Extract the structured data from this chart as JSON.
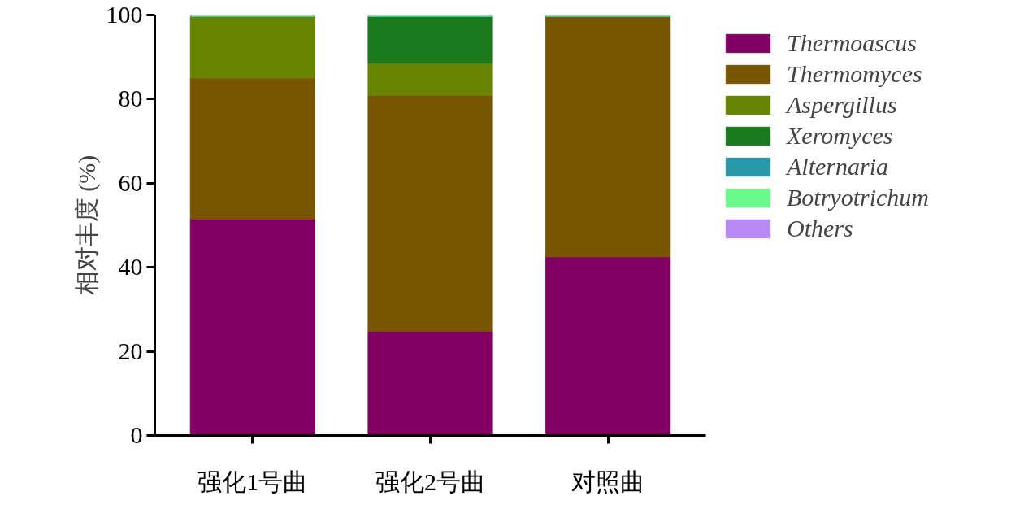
{
  "chart_data": {
    "type": "bar",
    "stacked": true,
    "ylabel": "相对丰度 (%)",
    "categories": [
      "强化1号曲",
      "强化2号曲",
      "对照曲"
    ],
    "series": [
      {
        "name": "Thermoascus",
        "color": "#820064",
        "values": [
          51.5,
          24.8,
          42.5
        ]
      },
      {
        "name": "Thermomyces",
        "color": "#785500",
        "values": [
          33.5,
          56.1,
          57.2
        ]
      },
      {
        "name": "Aspergillus",
        "color": "#668400",
        "values": [
          14.7,
          7.7,
          0
        ]
      },
      {
        "name": "Xeromyces",
        "color": "#1b7a1e",
        "values": [
          0,
          11.1,
          0
        ]
      },
      {
        "name": "Alternaria",
        "color": "#2a98a8",
        "values": [
          0,
          0,
          0
        ]
      },
      {
        "name": "Botryotrichum",
        "color": "#6cf98c",
        "values": [
          0.3,
          0.3,
          0.3
        ]
      },
      {
        "name": "Others",
        "color": "#b88af5",
        "values": [
          0,
          0,
          0
        ]
      }
    ],
    "ylim": [
      0,
      100
    ],
    "yticks": [
      0,
      20,
      40,
      60,
      80,
      100
    ],
    "grid": false,
    "legend": "right"
  }
}
